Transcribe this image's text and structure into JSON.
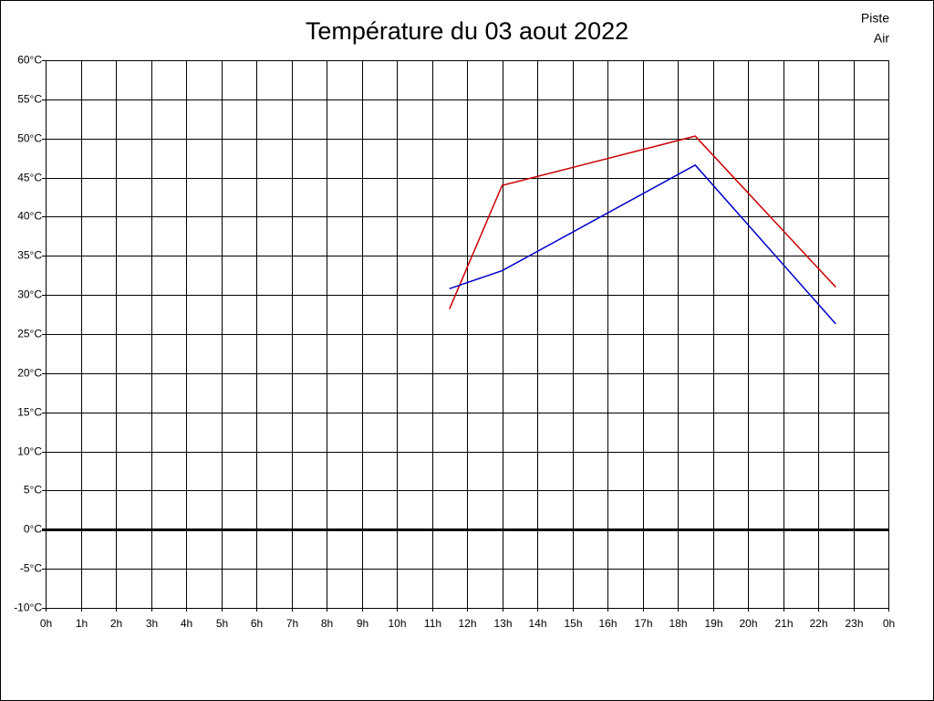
{
  "chart_data": {
    "type": "line",
    "title": "Température du 03 aout 2022",
    "x": [
      11.5,
      13,
      18.5,
      22.5
    ],
    "series": [
      {
        "name": "Piste",
        "color": "#cc0000",
        "values": [
          28.2,
          44.0,
          50.3,
          31.0
        ]
      },
      {
        "name": "Air",
        "color": "#0000cc",
        "values": [
          30.8,
          33.1,
          46.6,
          26.3
        ]
      }
    ],
    "xlim": [
      0,
      24
    ],
    "xticks": [
      {
        "value": 0,
        "label": "0h"
      },
      {
        "value": 1,
        "label": "1h"
      },
      {
        "value": 2,
        "label": "2h"
      },
      {
        "value": 3,
        "label": "3h"
      },
      {
        "value": 4,
        "label": "4h"
      },
      {
        "value": 5,
        "label": "5h"
      },
      {
        "value": 6,
        "label": "6h"
      },
      {
        "value": 7,
        "label": "7h"
      },
      {
        "value": 8,
        "label": "8h"
      },
      {
        "value": 9,
        "label": "9h"
      },
      {
        "value": 10,
        "label": "10h"
      },
      {
        "value": 11,
        "label": "11h"
      },
      {
        "value": 12,
        "label": "12h"
      },
      {
        "value": 13,
        "label": "13h"
      },
      {
        "value": 14,
        "label": "14h"
      },
      {
        "value": 15,
        "label": "15h"
      },
      {
        "value": 16,
        "label": "16h"
      },
      {
        "value": 17,
        "label": "17h"
      },
      {
        "value": 18,
        "label": "18h"
      },
      {
        "value": 19,
        "label": "19h"
      },
      {
        "value": 20,
        "label": "20h"
      },
      {
        "value": 21,
        "label": "21h"
      },
      {
        "value": 22,
        "label": "22h"
      },
      {
        "value": 23,
        "label": "23h"
      },
      {
        "value": 24,
        "label": "0h"
      }
    ],
    "ylim": [
      -10,
      60
    ],
    "yticks": [
      {
        "value": -10,
        "label": "-10°C"
      },
      {
        "value": -5,
        "label": "-5°C"
      },
      {
        "value": 0,
        "label": "0°C"
      },
      {
        "value": 5,
        "label": "5°C"
      },
      {
        "value": 10,
        "label": "10°C"
      },
      {
        "value": 15,
        "label": "15°C"
      },
      {
        "value": 20,
        "label": "20°C"
      },
      {
        "value": 25,
        "label": "25°C"
      },
      {
        "value": 30,
        "label": "30°C"
      },
      {
        "value": 35,
        "label": "35°C"
      },
      {
        "value": 40,
        "label": "40°C"
      },
      {
        "value": 45,
        "label": "45°C"
      },
      {
        "value": 50,
        "label": "50°C"
      },
      {
        "value": 55,
        "label": "55°C"
      },
      {
        "value": 60,
        "label": "60°C"
      }
    ],
    "grid": true,
    "legend": "top-right"
  }
}
